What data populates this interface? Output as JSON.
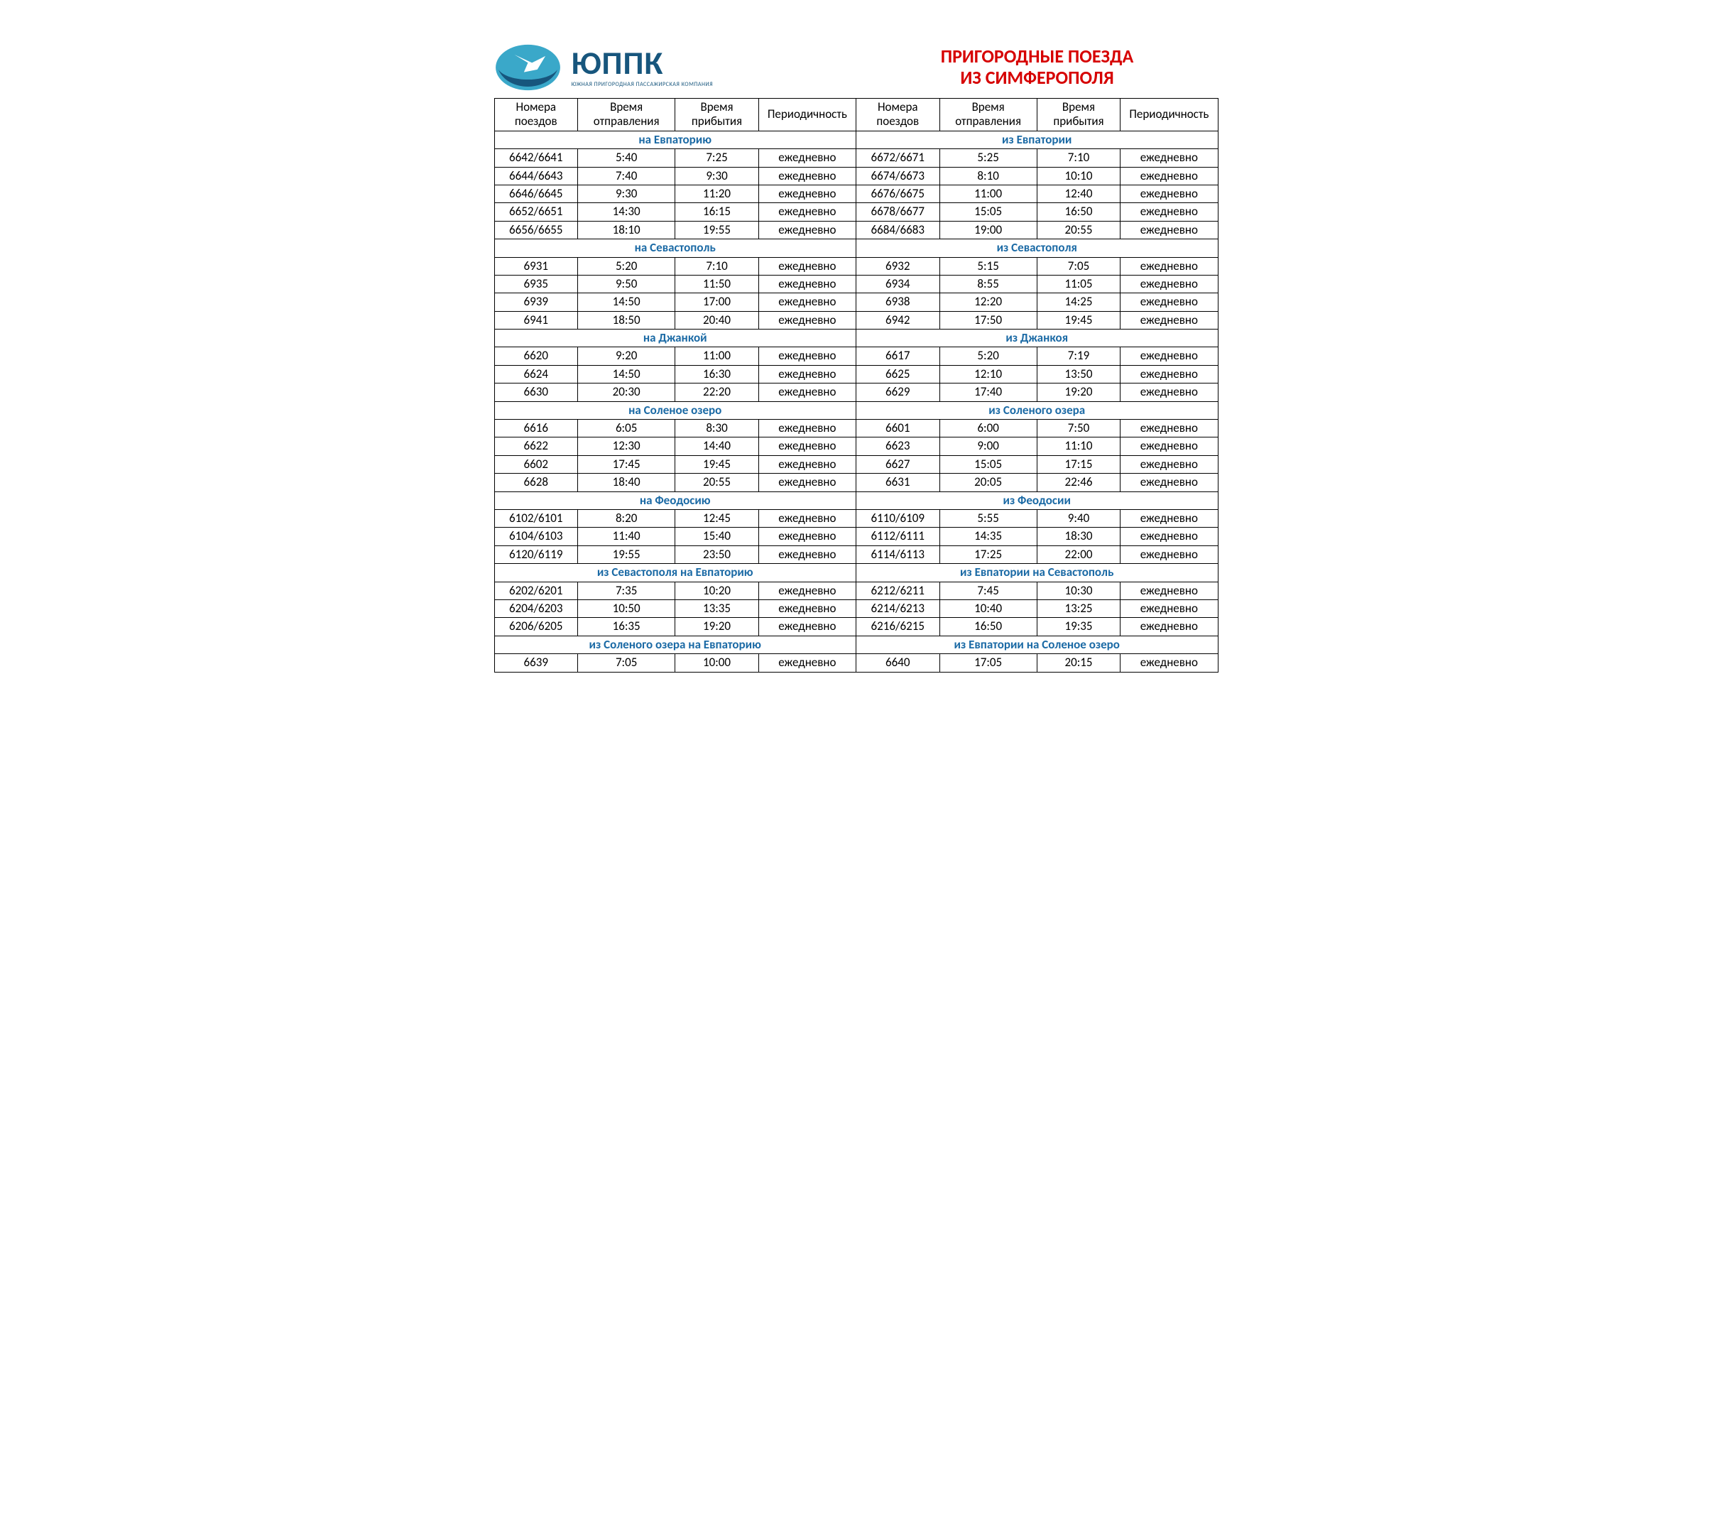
{
  "logo": {
    "main": "ЮППК",
    "sub": "ЮЖНАЯ ПРИГОРОДНАЯ ПАССАЖИРСКАЯ КОМПАНИЯ"
  },
  "title": {
    "line1": "ПРИГОРОДНЫЕ ПОЕЗДА",
    "line2": "ИЗ СИМФЕРОПОЛЯ"
  },
  "headers": {
    "num1": "Номера",
    "num2": "поездов",
    "dep1": "Время",
    "dep2": "отправления",
    "arr1": "Время",
    "arr2": "прибытия",
    "per": "Периодичность"
  },
  "colors": {
    "title": "#d60000",
    "section": "#1b6aa5",
    "border": "#000000",
    "text": "#000000",
    "logo_brand": "#17567d",
    "logo_light": "#3aa8c9"
  },
  "fonts": {
    "body_size": 17,
    "section_size": 19,
    "title_size": 26
  },
  "blocks": [
    {
      "left_title": "на Евпаторию",
      "right_title": "из Евпатории",
      "rows": [
        {
          "l": [
            "6642/6641",
            "5:40",
            "7:25",
            "ежедневно"
          ],
          "r": [
            "6672/6671",
            "5:25",
            "7:10",
            "ежедневно"
          ]
        },
        {
          "l": [
            "6644/6643",
            "7:40",
            "9:30",
            "ежедневно"
          ],
          "r": [
            "6674/6673",
            "8:10",
            "10:10",
            "ежедневно"
          ]
        },
        {
          "l": [
            "6646/6645",
            "9:30",
            "11:20",
            "ежедневно"
          ],
          "r": [
            "6676/6675",
            "11:00",
            "12:40",
            "ежедневно"
          ]
        },
        {
          "l": [
            "6652/6651",
            "14:30",
            "16:15",
            "ежедневно"
          ],
          "r": [
            "6678/6677",
            "15:05",
            "16:50",
            "ежедневно"
          ]
        },
        {
          "l": [
            "6656/6655",
            "18:10",
            "19:55",
            "ежедневно"
          ],
          "r": [
            "6684/6683",
            "19:00",
            "20:55",
            "ежедневно"
          ]
        }
      ]
    },
    {
      "left_title": "на Севастополь",
      "right_title": "из Севастополя",
      "rows": [
        {
          "l": [
            "6931",
            "5:20",
            "7:10",
            "ежедневно"
          ],
          "r": [
            "6932",
            "5:15",
            "7:05",
            "ежедневно"
          ]
        },
        {
          "l": [
            "6935",
            "9:50",
            "11:50",
            "ежедневно"
          ],
          "r": [
            "6934",
            "8:55",
            "11:05",
            "ежедневно"
          ]
        },
        {
          "l": [
            "6939",
            "14:50",
            "17:00",
            "ежедневно"
          ],
          "r": [
            "6938",
            "12:20",
            "14:25",
            "ежедневно"
          ]
        },
        {
          "l": [
            "6941",
            "18:50",
            "20:40",
            "ежедневно"
          ],
          "r": [
            "6942",
            "17:50",
            "19:45",
            "ежедневно"
          ]
        }
      ]
    },
    {
      "left_title": "на Джанкой",
      "right_title": "из Джанкоя",
      "rows": [
        {
          "l": [
            "6620",
            "9:20",
            "11:00",
            "ежедневно"
          ],
          "r": [
            "6617",
            "5:20",
            "7:19",
            "ежедневно"
          ]
        },
        {
          "l": [
            "6624",
            "14:50",
            "16:30",
            "ежедневно"
          ],
          "r": [
            "6625",
            "12:10",
            "13:50",
            "ежедневно"
          ]
        },
        {
          "l": [
            "6630",
            "20:30",
            "22:20",
            "ежедневно"
          ],
          "r": [
            "6629",
            "17:40",
            "19:20",
            "ежедневно"
          ]
        }
      ]
    },
    {
      "left_title": "на Соленое озеро",
      "right_title": "из Соленого озера",
      "rows": [
        {
          "l": [
            "6616",
            "6:05",
            "8:30",
            "ежедневно"
          ],
          "r": [
            "6601",
            "6:00",
            "7:50",
            "ежедневно"
          ]
        },
        {
          "l": [
            "6622",
            "12:30",
            "14:40",
            "ежедневно"
          ],
          "r": [
            "6623",
            "9:00",
            "11:10",
            "ежедневно"
          ]
        },
        {
          "l": [
            "6602",
            "17:45",
            "19:45",
            "ежедневно"
          ],
          "r": [
            "6627",
            "15:05",
            "17:15",
            "ежедневно"
          ]
        },
        {
          "l": [
            "6628",
            "18:40",
            "20:55",
            "ежедневно"
          ],
          "r": [
            "6631",
            "20:05",
            "22:46",
            "ежедневно"
          ]
        }
      ]
    },
    {
      "left_title": "на Феодосию",
      "right_title": "из Феодосии",
      "rows": [
        {
          "l": [
            "6102/6101",
            "8:20",
            "12:45",
            "ежедневно"
          ],
          "r": [
            "6110/6109",
            "5:55",
            "9:40",
            "ежедневно"
          ]
        },
        {
          "l": [
            "6104/6103",
            "11:40",
            "15:40",
            "ежедневно"
          ],
          "r": [
            "6112/6111",
            "14:35",
            "18:30",
            "ежедневно"
          ]
        },
        {
          "l": [
            "6120/6119",
            "19:55",
            "23:50",
            "ежедневно"
          ],
          "r": [
            "6114/6113",
            "17:25",
            "22:00",
            "ежедневно"
          ]
        }
      ]
    },
    {
      "left_title": "из Севастополя на Евпаторию",
      "right_title": "из Евпатории на Севастополь",
      "rows": [
        {
          "l": [
            "6202/6201",
            "7:35",
            "10:20",
            "ежедневно"
          ],
          "r": [
            "6212/6211",
            "7:45",
            "10:30",
            "ежедневно"
          ]
        },
        {
          "l": [
            "6204/6203",
            "10:50",
            "13:35",
            "ежедневно"
          ],
          "r": [
            "6214/6213",
            "10:40",
            "13:25",
            "ежедневно"
          ]
        },
        {
          "l": [
            "6206/6205",
            "16:35",
            "19:20",
            "ежедневно"
          ],
          "r": [
            "6216/6215",
            "16:50",
            "19:35",
            "ежедневно"
          ]
        }
      ]
    },
    {
      "left_title": "из Соленого озера на Евпаторию",
      "right_title": "из Евпатории на Соленое озеро",
      "rows": [
        {
          "l": [
            "6639",
            "7:05",
            "10:00",
            "ежедневно"
          ],
          "r": [
            "6640",
            "17:05",
            "20:15",
            "ежедневно"
          ]
        }
      ]
    }
  ]
}
